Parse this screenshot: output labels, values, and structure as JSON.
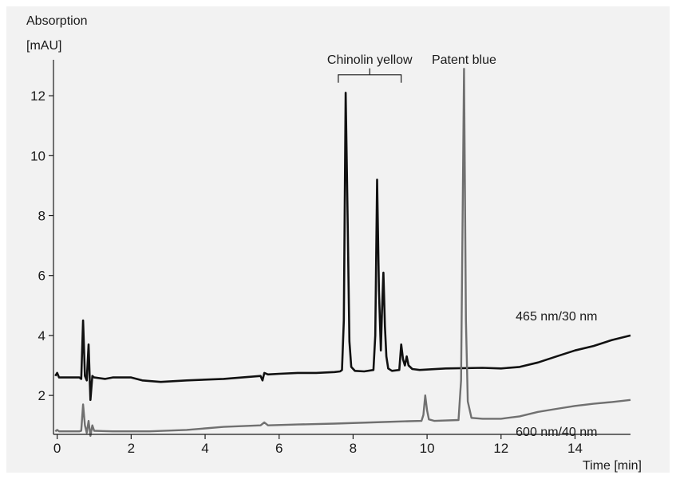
{
  "chart_data": {
    "type": "line",
    "ylabel_line1": "Absorption",
    "ylabel_line2": "[mAU]",
    "xlabel": "Time [min]",
    "xlim": [
      -0.1,
      15.5
    ],
    "ylim": [
      0.7,
      13.2
    ],
    "x_ticks": [
      {
        "value": 0,
        "label": "0"
      },
      {
        "value": 2,
        "label": "2"
      },
      {
        "value": 4,
        "label": "4"
      },
      {
        "value": 6,
        "label": "6"
      },
      {
        "value": 8,
        "label": "8"
      },
      {
        "value": 10,
        "label": "10"
      },
      {
        "value": 12,
        "label": "12"
      },
      {
        "value": 14,
        "label": "14"
      }
    ],
    "y_ticks": [
      {
        "value": 2,
        "label": "2"
      },
      {
        "value": 4,
        "label": "4"
      },
      {
        "value": 6,
        "label": "6"
      },
      {
        "value": 8,
        "label": "8"
      },
      {
        "value": 10,
        "label": "10"
      },
      {
        "value": 12,
        "label": "12"
      }
    ],
    "annotations": {
      "peak_group_label": "Chinolin yellow",
      "peak_group_range": [
        7.6,
        9.3
      ],
      "peak_group_level": 12.7,
      "single_peak_label": "Patent blue",
      "single_peak_x": 11.0
    },
    "series": [
      {
        "name": "465 nm/30 nm",
        "color": "#111111",
        "label_at": [
          13.5,
          4.5
        ],
        "points": [
          [
            -0.05,
            2.65
          ],
          [
            0.0,
            2.75
          ],
          [
            0.05,
            2.6
          ],
          [
            0.6,
            2.6
          ],
          [
            0.65,
            2.55
          ],
          [
            0.7,
            4.5
          ],
          [
            0.75,
            2.65
          ],
          [
            0.8,
            2.5
          ],
          [
            0.85,
            3.7
          ],
          [
            0.9,
            1.85
          ],
          [
            0.95,
            2.65
          ],
          [
            1.0,
            2.6
          ],
          [
            1.3,
            2.55
          ],
          [
            1.5,
            2.6
          ],
          [
            2.0,
            2.6
          ],
          [
            2.3,
            2.5
          ],
          [
            2.8,
            2.45
          ],
          [
            3.5,
            2.5
          ],
          [
            4.5,
            2.55
          ],
          [
            5.5,
            2.65
          ],
          [
            5.55,
            2.5
          ],
          [
            5.6,
            2.75
          ],
          [
            5.7,
            2.7
          ],
          [
            6.0,
            2.72
          ],
          [
            6.5,
            2.75
          ],
          [
            7.0,
            2.75
          ],
          [
            7.5,
            2.78
          ],
          [
            7.65,
            2.8
          ],
          [
            7.7,
            2.85
          ],
          [
            7.75,
            4.5
          ],
          [
            7.8,
            12.1
          ],
          [
            7.85,
            8.0
          ],
          [
            7.9,
            3.8
          ],
          [
            7.95,
            2.95
          ],
          [
            8.05,
            2.82
          ],
          [
            8.3,
            2.8
          ],
          [
            8.55,
            2.85
          ],
          [
            8.6,
            4.0
          ],
          [
            8.65,
            9.2
          ],
          [
            8.7,
            5.5
          ],
          [
            8.75,
            3.5
          ],
          [
            8.78,
            4.8
          ],
          [
            8.82,
            6.1
          ],
          [
            8.86,
            4.3
          ],
          [
            8.9,
            3.3
          ],
          [
            8.95,
            2.9
          ],
          [
            9.05,
            2.82
          ],
          [
            9.25,
            2.85
          ],
          [
            9.3,
            3.7
          ],
          [
            9.35,
            3.2
          ],
          [
            9.4,
            3.0
          ],
          [
            9.45,
            3.3
          ],
          [
            9.5,
            3.0
          ],
          [
            9.6,
            2.88
          ],
          [
            9.8,
            2.85
          ],
          [
            10.5,
            2.9
          ],
          [
            11.5,
            2.92
          ],
          [
            12.0,
            2.9
          ],
          [
            12.5,
            2.95
          ],
          [
            13.0,
            3.1
          ],
          [
            13.5,
            3.3
          ],
          [
            14.0,
            3.5
          ],
          [
            14.5,
            3.65
          ],
          [
            15.0,
            3.85
          ],
          [
            15.5,
            4.0
          ]
        ]
      },
      {
        "name": "600 nm/40 nm",
        "color": "#707070",
        "label_at": [
          13.5,
          0.65
        ],
        "points": [
          [
            -0.05,
            0.8
          ],
          [
            0.0,
            0.85
          ],
          [
            0.05,
            0.8
          ],
          [
            0.6,
            0.8
          ],
          [
            0.65,
            0.82
          ],
          [
            0.7,
            1.7
          ],
          [
            0.75,
            1.0
          ],
          [
            0.8,
            0.75
          ],
          [
            0.85,
            1.15
          ],
          [
            0.9,
            0.65
          ],
          [
            0.95,
            1.0
          ],
          [
            1.0,
            0.82
          ],
          [
            1.5,
            0.8
          ],
          [
            2.5,
            0.8
          ],
          [
            3.5,
            0.85
          ],
          [
            4.5,
            0.95
          ],
          [
            5.5,
            1.0
          ],
          [
            5.6,
            1.1
          ],
          [
            5.7,
            1.0
          ],
          [
            6.5,
            1.03
          ],
          [
            7.5,
            1.06
          ],
          [
            8.5,
            1.1
          ],
          [
            9.5,
            1.14
          ],
          [
            9.85,
            1.15
          ],
          [
            9.9,
            1.35
          ],
          [
            9.95,
            2.0
          ],
          [
            10.0,
            1.5
          ],
          [
            10.05,
            1.2
          ],
          [
            10.2,
            1.15
          ],
          [
            10.85,
            1.18
          ],
          [
            10.92,
            2.5
          ],
          [
            11.0,
            12.9
          ],
          [
            11.05,
            4.5
          ],
          [
            11.1,
            1.8
          ],
          [
            11.2,
            1.25
          ],
          [
            11.5,
            1.22
          ],
          [
            12.0,
            1.22
          ],
          [
            12.5,
            1.3
          ],
          [
            13.0,
            1.45
          ],
          [
            13.5,
            1.55
          ],
          [
            14.0,
            1.65
          ],
          [
            14.5,
            1.72
          ],
          [
            15.0,
            1.78
          ],
          [
            15.5,
            1.85
          ]
        ]
      }
    ]
  }
}
